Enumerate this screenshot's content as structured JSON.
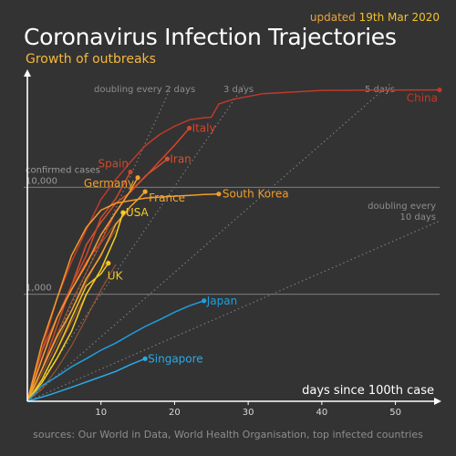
{
  "header": {
    "updated_prefix": "updated",
    "updated_date": "19th Mar 2020",
    "title": "Coronavirus Infection Trajectories",
    "subtitle": "Growth of outbreaks"
  },
  "footer": {
    "sources": "sources: Our World in Data, World Health Organisation, top infected countries"
  },
  "colors": {
    "background": "#333333",
    "axis": "#ffffff",
    "gridline": "#8a8a8a",
    "reference": "#7a7a7a",
    "china": "#c0392b",
    "italy": "#d8442a",
    "iran": "#d4512e",
    "spain": "#cc4a2a",
    "germany": "#f0a030",
    "france": "#f3a533",
    "south_korea": "#f29d2b",
    "usa": "#f5d020",
    "uk": "#f2c61f",
    "japan": "#1f9fe0",
    "singapore": "#2aa9e8",
    "background_lines": "#c4622a"
  },
  "chart_data": {
    "type": "line",
    "xlabel": "days since 100th case",
    "ylabel": "confirmed cases",
    "xlim": [
      0,
      56
    ],
    "ylim": [
      100,
      100000
    ],
    "y_scale": "log",
    "x_ticks": [
      10,
      20,
      30,
      40,
      50
    ],
    "y_ticks": [
      {
        "value": 1000,
        "label": "1,000"
      },
      {
        "value": 10000,
        "label": "10,000"
      }
    ],
    "reference_lines": [
      {
        "label": "doubling every 2 days",
        "doubling_days": 2
      },
      {
        "label": "3 days",
        "doubling_days": 3
      },
      {
        "label": "5 days",
        "doubling_days": 5
      },
      {
        "label": "doubling every 10 days",
        "doubling_days": 10
      }
    ],
    "series": [
      {
        "name": "China",
        "color_key": "china",
        "x": [
          0,
          2,
          4,
          6,
          8,
          10,
          12,
          14,
          16,
          18,
          20,
          22,
          24,
          25,
          26,
          28,
          32,
          40,
          48,
          56
        ],
        "y": [
          100,
          300,
          900,
          2000,
          4000,
          7700,
          11800,
          17200,
          24400,
          31200,
          37200,
          42700,
          44600,
          45200,
          60000,
          66500,
          75000,
          80400,
          80900,
          81150
        ]
      },
      {
        "name": "Italy",
        "color_key": "italy",
        "x": [
          0,
          2,
          4,
          6,
          8,
          10,
          12,
          14,
          16,
          18,
          20,
          22
        ],
        "y": [
          100,
          250,
          600,
          1100,
          2000,
          3100,
          5900,
          9200,
          12500,
          17600,
          24700,
          35700
        ]
      },
      {
        "name": "Iran",
        "color_key": "iran",
        "x": [
          0,
          2,
          4,
          6,
          8,
          10,
          12,
          14,
          16,
          18,
          19
        ],
        "y": [
          100,
          300,
          600,
          1200,
          2900,
          4700,
          7100,
          9000,
          12700,
          16200,
          18400
        ]
      },
      {
        "name": "Spain",
        "color_key": "spain",
        "x": [
          0,
          2,
          4,
          6,
          8,
          10,
          12,
          14
        ],
        "y": [
          100,
          200,
          500,
          1200,
          2300,
          5200,
          7800,
          13900
        ]
      },
      {
        "name": "Germany",
        "color_key": "germany",
        "x": [
          0,
          2,
          4,
          6,
          8,
          10,
          12,
          14,
          15
        ],
        "y": [
          100,
          250,
          600,
          1100,
          1900,
          3600,
          5800,
          9300,
          12300
        ]
      },
      {
        "name": "France",
        "color_key": "france",
        "x": [
          0,
          2,
          4,
          6,
          8,
          10,
          12,
          14,
          15,
          16
        ],
        "y": [
          100,
          200,
          400,
          700,
          1400,
          2300,
          4500,
          6600,
          7700,
          9100
        ]
      },
      {
        "name": "South Korea",
        "color_key": "south_korea",
        "x": [
          0,
          2,
          4,
          6,
          8,
          10,
          12,
          14,
          16,
          18,
          20,
          22,
          24,
          26
        ],
        "y": [
          100,
          350,
          900,
          2300,
          4200,
          6100,
          7100,
          7500,
          7900,
          8100,
          8250,
          8400,
          8550,
          8650
        ]
      },
      {
        "name": "USA",
        "color_key": "usa",
        "x": [
          0,
          2,
          4,
          6,
          8,
          10,
          12,
          13
        ],
        "y": [
          100,
          150,
          250,
          450,
          1000,
          1700,
          3500,
          5800
        ]
      },
      {
        "name": "UK",
        "color_key": "uk",
        "x": [
          0,
          2,
          4,
          6,
          8,
          10,
          11
        ],
        "y": [
          100,
          160,
          300,
          600,
          1200,
          1550,
          1950
        ]
      },
      {
        "name": "Japan",
        "color_key": "japan",
        "x": [
          0,
          2,
          4,
          6,
          8,
          10,
          12,
          14,
          16,
          18,
          20,
          22,
          24
        ],
        "y": [
          100,
          140,
          170,
          210,
          250,
          300,
          350,
          420,
          500,
          580,
          680,
          780,
          870
        ]
      },
      {
        "name": "Singapore",
        "color_key": "singapore",
        "x": [
          0,
          3,
          6,
          9,
          12,
          14,
          16
        ],
        "y": [
          100,
          115,
          135,
          160,
          190,
          220,
          250
        ]
      }
    ],
    "background_series_note": "",
    "background_series": [
      {
        "x": [
          0,
          2,
          4,
          6,
          8,
          10,
          12
        ],
        "y": [
          100,
          180,
          350,
          700,
          1300,
          2400,
          4000
        ]
      },
      {
        "x": [
          0,
          2,
          4,
          6,
          8,
          10,
          12,
          14
        ],
        "y": [
          100,
          200,
          420,
          850,
          1600,
          3000,
          4600,
          6200
        ]
      },
      {
        "x": [
          0,
          2,
          4,
          6,
          8,
          10,
          11
        ],
        "y": [
          100,
          160,
          300,
          550,
          1000,
          1700,
          2100
        ]
      },
      {
        "x": [
          0,
          2,
          4,
          6,
          8,
          10,
          12
        ],
        "y": [
          100,
          130,
          200,
          330,
          600,
          1100,
          1900
        ]
      }
    ]
  }
}
